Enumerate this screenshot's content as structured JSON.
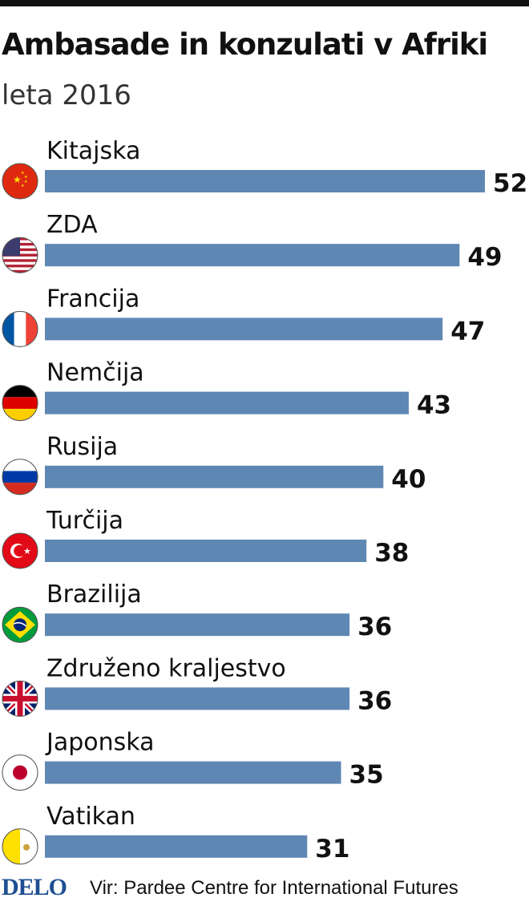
{
  "header": {
    "title": "Ambasade in konzulati v Afriki",
    "subtitle": "leta 2016"
  },
  "footer": {
    "logo": "DELO",
    "source": "Vir: Pardee Centre for International Futures"
  },
  "colors": {
    "bar": "#5f87b3",
    "text": "#111111",
    "logo": "#1d4f91"
  },
  "chart_data": {
    "type": "bar",
    "orientation": "horizontal",
    "categories": [
      "Kitajska",
      "ZDA",
      "Francija",
      "Nemčija",
      "Rusija",
      "Turčija",
      "Brazilija",
      "Združeno kraljestvo",
      "Japonska",
      "Vatikan"
    ],
    "values": [
      52,
      49,
      47,
      43,
      40,
      38,
      36,
      36,
      35,
      31
    ],
    "icons": [
      "china-flag-icon",
      "usa-flag-icon",
      "france-flag-icon",
      "germany-flag-icon",
      "russia-flag-icon",
      "turkey-flag-icon",
      "brazil-flag-icon",
      "uk-flag-icon",
      "japan-flag-icon",
      "vatican-flag-icon"
    ],
    "data_labels": true,
    "grid": false,
    "legend": "none"
  }
}
